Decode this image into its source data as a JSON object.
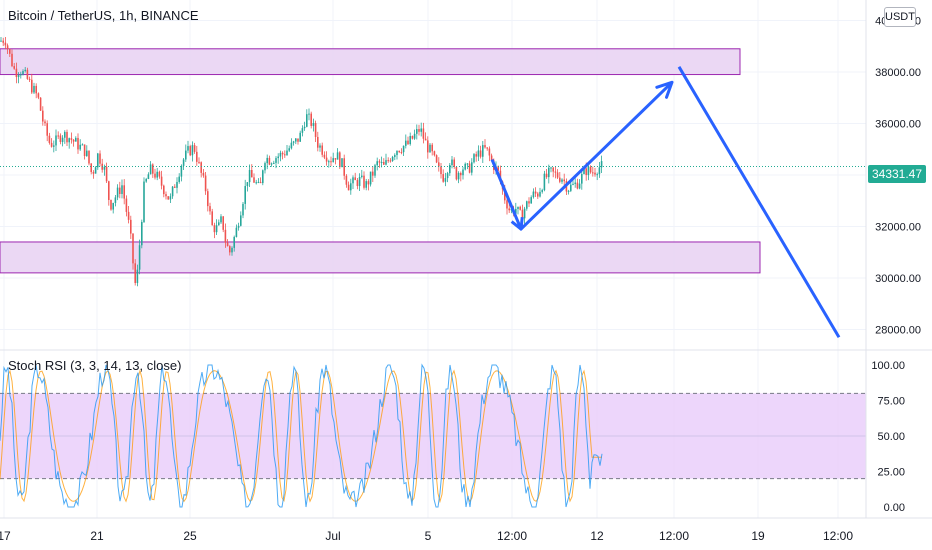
{
  "header": {
    "title": "Bitcoin / TetherUS, 1h, BINANCE",
    "currency_label": "USDT"
  },
  "price_tag": "34331.47",
  "colors": {
    "up": "#26a69a",
    "down": "#ef5350",
    "zone_fill": "#e7d1f2",
    "zone_stroke": "#9c27b0",
    "arrow": "#2962ff",
    "rsi_band": "#e8ccfa",
    "rsi_k": "#2196f3",
    "rsi_d": "#ff9800",
    "last_price": "#22ab94"
  },
  "indicator": {
    "title": "Stoch RSI (3, 3, 14, 13, close)",
    "upper_band": 80,
    "lower_band": 20,
    "last_k": 33,
    "last_d": 35
  },
  "chart_data": {
    "type": "candlestick",
    "symbol": "Bitcoin / TetherUS",
    "timeframe": "1h",
    "exchange": "BINANCE",
    "ylim": [
      27400,
      40600
    ],
    "y_ticks": [
      "40000.00",
      "38000.00",
      "36000.00",
      "34000.00",
      "32000.00",
      "30000.00",
      "28000.00"
    ],
    "x_ticks": [
      "17",
      "21",
      "25",
      "Jul",
      "5",
      "12:00",
      "12",
      "12:00",
      "19",
      "12:00"
    ],
    "last_price": 34331.47,
    "price_path": [
      [
        0,
        39200
      ],
      [
        5,
        39300
      ],
      [
        10,
        38600
      ],
      [
        15,
        38000
      ],
      [
        20,
        38100
      ],
      [
        26,
        37800
      ],
      [
        32,
        37400
      ],
      [
        38,
        37000
      ],
      [
        44,
        35900
      ],
      [
        50,
        35200
      ],
      [
        56,
        35300
      ],
      [
        62,
        35600
      ],
      [
        68,
        35500
      ],
      [
        74,
        35300
      ],
      [
        80,
        35100
      ],
      [
        86,
        34900
      ],
      [
        92,
        34000
      ],
      [
        98,
        34800
      ],
      [
        104,
        34300
      ],
      [
        110,
        32800
      ],
      [
        116,
        33200
      ],
      [
        122,
        33600
      ],
      [
        126,
        32700
      ],
      [
        130,
        31800
      ],
      [
        134,
        30200
      ],
      [
        136,
        29500
      ],
      [
        140,
        31500
      ],
      [
        144,
        33500
      ],
      [
        150,
        34200
      ],
      [
        156,
        34000
      ],
      [
        162,
        33600
      ],
      [
        166,
        33300
      ],
      [
        170,
        33000
      ],
      [
        176,
        33800
      ],
      [
        182,
        34500
      ],
      [
        188,
        34900
      ],
      [
        194,
        35100
      ],
      [
        200,
        34200
      ],
      [
        206,
        33400
      ],
      [
        212,
        32000
      ],
      [
        218,
        31900
      ],
      [
        222,
        32300
      ],
      [
        226,
        31300
      ],
      [
        230,
        31000
      ],
      [
        236,
        31800
      ],
      [
        242,
        32900
      ],
      [
        248,
        34000
      ],
      [
        254,
        33800
      ],
      [
        260,
        33400
      ],
      [
        264,
        34700
      ],
      [
        270,
        34600
      ],
      [
        276,
        34700
      ],
      [
        282,
        34800
      ],
      [
        288,
        35000
      ],
      [
        294,
        35200
      ],
      [
        300,
        35500
      ],
      [
        306,
        36300
      ],
      [
        312,
        36000
      ],
      [
        318,
        35200
      ],
      [
        324,
        34900
      ],
      [
        330,
        34600
      ],
      [
        336,
        34800
      ],
      [
        342,
        34400
      ],
      [
        348,
        33600
      ],
      [
        354,
        33700
      ],
      [
        360,
        33800
      ],
      [
        366,
        33600
      ],
      [
        372,
        34000
      ],
      [
        378,
        34500
      ],
      [
        384,
        34300
      ],
      [
        390,
        34700
      ],
      [
        396,
        35000
      ],
      [
        402,
        35100
      ],
      [
        408,
        35200
      ],
      [
        414,
        35500
      ],
      [
        420,
        35800
      ],
      [
        426,
        35200
      ],
      [
        432,
        34800
      ],
      [
        438,
        34200
      ],
      [
        444,
        33900
      ],
      [
        450,
        34600
      ],
      [
        456,
        34000
      ],
      [
        462,
        34300
      ],
      [
        468,
        34200
      ],
      [
        474,
        34600
      ],
      [
        480,
        34900
      ],
      [
        486,
        35000
      ],
      [
        492,
        34500
      ],
      [
        498,
        34100
      ],
      [
        504,
        33200
      ],
      [
        510,
        32600
      ],
      [
        516,
        32700
      ],
      [
        520,
        32400
      ],
      [
        526,
        32800
      ],
      [
        532,
        33200
      ],
      [
        538,
        33300
      ],
      [
        544,
        33800
      ],
      [
        550,
        34100
      ],
      [
        556,
        34000
      ],
      [
        562,
        33900
      ],
      [
        568,
        33500
      ],
      [
        574,
        33600
      ],
      [
        580,
        33800
      ],
      [
        586,
        34200
      ],
      [
        592,
        34100
      ],
      [
        598,
        34300
      ],
      [
        603,
        34331
      ]
    ],
    "rectangles": [
      {
        "label": "resistance-zone",
        "price_top": 38900,
        "price_bottom": 37900,
        "x_start": 0,
        "x_end": 740
      },
      {
        "label": "support-zone",
        "price_top": 31400,
        "price_bottom": 30200,
        "x_start": 0,
        "x_end": 760
      }
    ],
    "projection": [
      {
        "x": 492,
        "price": 34600
      },
      {
        "x": 521,
        "price": 31900
      },
      {
        "x": 672,
        "price": 37600
      }
    ],
    "projection_drop": [
      {
        "x": 679,
        "price": 38200
      },
      {
        "x": 839,
        "price": 27700
      }
    ]
  }
}
